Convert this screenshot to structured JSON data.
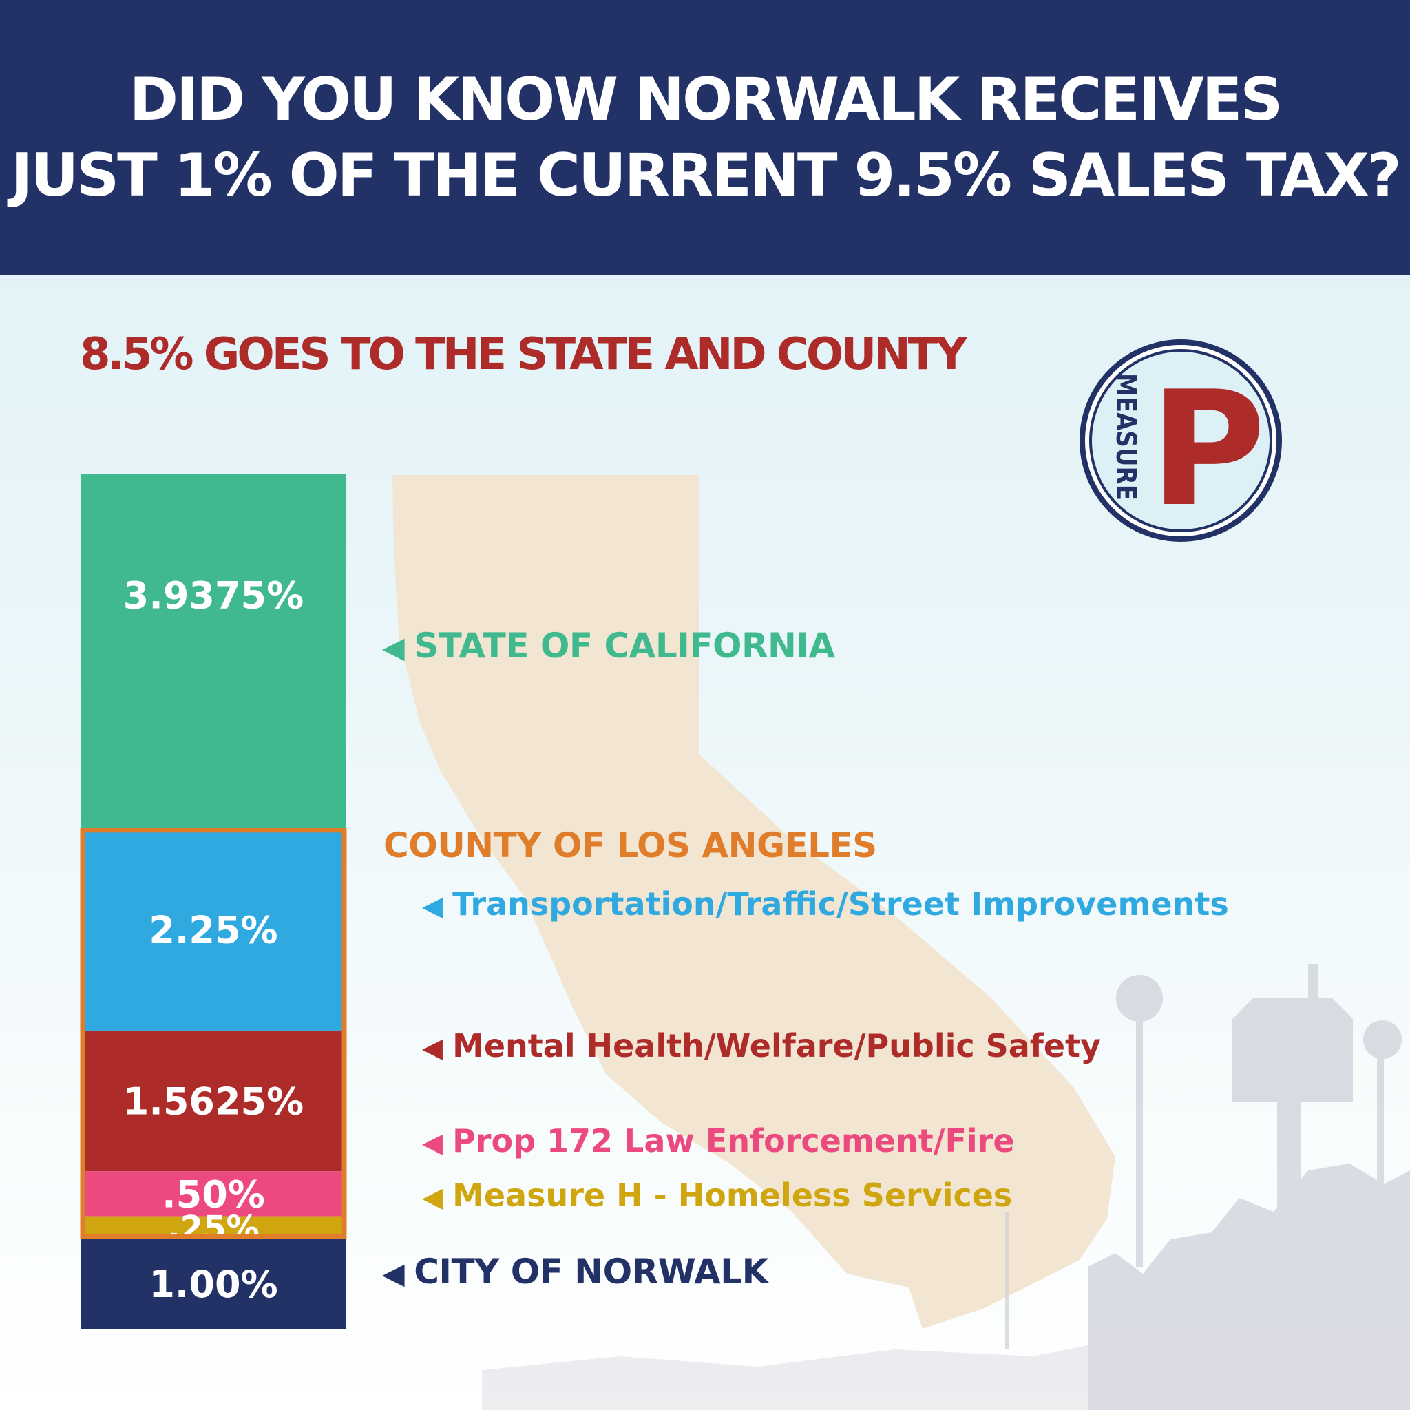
{
  "header": {
    "line1": "DID YOU KNOW NORWALK RECEIVES",
    "line2": "JUST 1%  OF THE CURRENT 9.5% SALES TAX?"
  },
  "subtitle": "8.5% GOES TO THE STATE AND COUNTY",
  "logo": {
    "word": "MEASURE",
    "letter": "P"
  },
  "colors": {
    "header_bg": "#233266",
    "subtitle": "#ad2b28",
    "state": "#3fb98d",
    "county": "#e07d2b",
    "transportation": "#2fa9e0",
    "mental_health": "#ad2b28",
    "prop172": "#ec4a7e",
    "measure_h": "#cfa60f",
    "city": "#233266",
    "california_shape": "#f2e6d2"
  },
  "chart_data": {
    "type": "bar",
    "stacked": true,
    "total": 9.5,
    "unit": "%",
    "segments": [
      {
        "value": 3.9375,
        "label": "3.9375%",
        "color": "#3fb98d"
      },
      {
        "value": 2.25,
        "label": "2.25%",
        "color": "#2fa9e0"
      },
      {
        "value": 1.5625,
        "label": "1.5625%",
        "color": "#ad2b28"
      },
      {
        "value": 0.5,
        "label": ".50%",
        "color": "#ec4a7e"
      },
      {
        "value": 0.25,
        "label": ".25%",
        "color": "#cfa60f"
      },
      {
        "value": 1.0,
        "label": "1.00%",
        "color": "#233266"
      }
    ],
    "county_group_value": 4.5625
  },
  "labels": {
    "state": "STATE OF CALIFORNIA",
    "county": "COUNTY OF LOS ANGELES",
    "transportation": "Transportation/Traffic/Street Improvements",
    "mental_health": "Mental Health/Welfare/Public Safety",
    "prop172": "Prop 172 Law Enforcement/Fire",
    "measure_h": "Measure H - Homeless Services",
    "city": "CITY OF NORWALK"
  },
  "arrow": "◀"
}
